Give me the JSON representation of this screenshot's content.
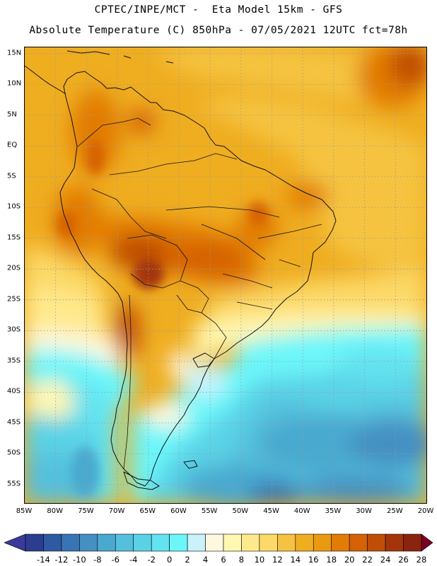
{
  "header": {
    "line1": "CPTEC/INPE/MCT -  Eta Model 15km - GFS",
    "line2": "Absolute Temperature (C) 850hPa - 07/05/2021 12UTC fct=78h"
  },
  "map": {
    "lat_labels": [
      "15N",
      "10N",
      "5N",
      "EQ",
      "5S",
      "10S",
      "15S",
      "20S",
      "25S",
      "30S",
      "35S",
      "40S",
      "45S",
      "50S",
      "55S"
    ],
    "lat_values": [
      15,
      10,
      5,
      0,
      -5,
      -10,
      -15,
      -20,
      -25,
      -30,
      -35,
      -40,
      -45,
      -50,
      -55
    ],
    "lon_labels": [
      "85W",
      "80W",
      "75W",
      "70W",
      "65W",
      "60W",
      "55W",
      "50W",
      "45W",
      "40W",
      "35W",
      "30W",
      "25W",
      "20W"
    ],
    "lon_values": [
      -85,
      -80,
      -75,
      -70,
      -65,
      -60,
      -55,
      -50,
      -45,
      -40,
      -35,
      -30,
      -25,
      -20
    ],
    "extent": {
      "lon_min": -85,
      "lon_max": -20,
      "lat_min": -58,
      "lat_max": 16
    }
  },
  "colorbar": {
    "labels": [
      "-14",
      "-12",
      "-10",
      "-8",
      "-6",
      "-4",
      "-2",
      "0",
      "2",
      "4",
      "6",
      "8",
      "10",
      "12",
      "14",
      "16",
      "18",
      "20",
      "22",
      "24",
      "26",
      "28"
    ],
    "colors": [
      "#2c3d8f",
      "#2f5aa3",
      "#3775b4",
      "#4590c2",
      "#4aa9cf",
      "#54c0dd",
      "#5ad2e6",
      "#63e2ef",
      "#6cf6fa",
      "#c9f2fa",
      "#fff8e0",
      "#fff7b2",
      "#ffe98d",
      "#fcd968",
      "#f5c341",
      "#efad20",
      "#ea9a10",
      "#e27c06",
      "#d56204",
      "#c04d06",
      "#a4350a",
      "#8a240d"
    ],
    "left_arrow_color": "#3a3a9e",
    "right_arrow_color": "#7a0024"
  }
}
